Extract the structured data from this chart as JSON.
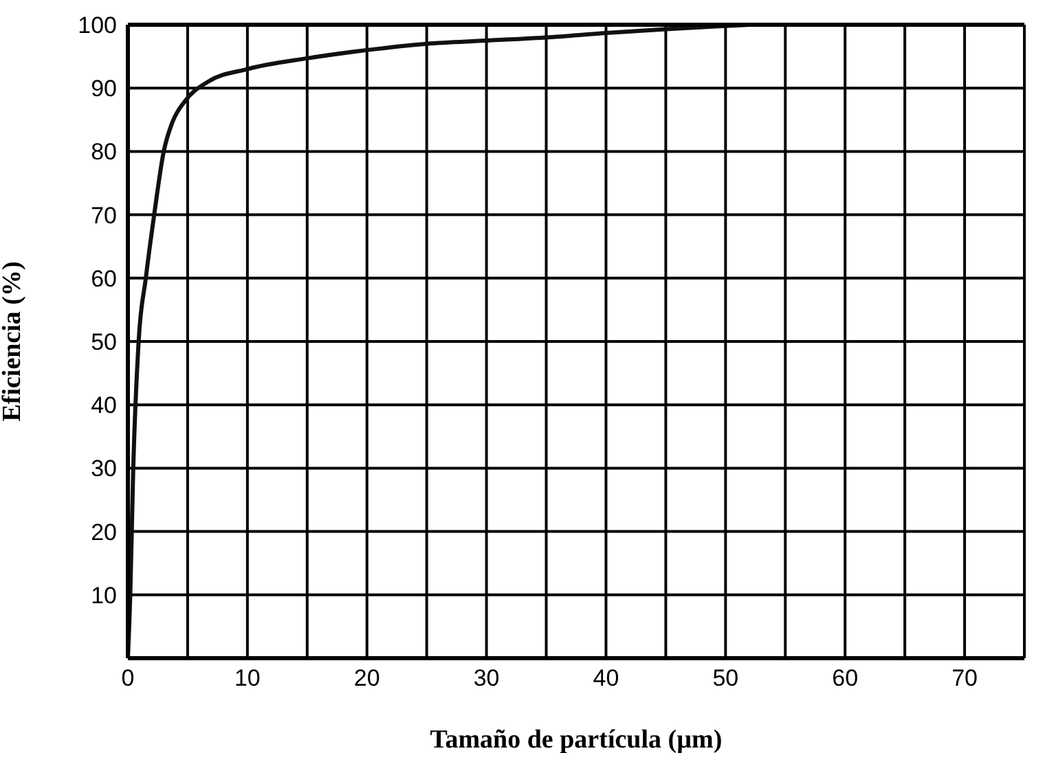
{
  "chart_data": {
    "type": "line",
    "xlabel": "Tamaño de partícula (µm)",
    "ylabel": "Eficiencia (%)",
    "x": [
      0,
      0.2,
      0.45,
      0.9,
      1.5,
      2.2,
      3,
      3.7,
      4.8,
      6.7,
      10,
      15,
      20,
      25,
      30,
      35,
      40,
      45,
      50,
      52
    ],
    "series": [
      {
        "color": "#111111",
        "values": [
          0,
          10,
          30,
          50,
          60,
          70,
          80,
          84.5,
          88,
          91,
          93,
          94.7,
          96,
          97,
          97.5,
          98,
          98.7,
          99.3,
          99.8,
          100
        ]
      }
    ],
    "xlim": [
      0,
      75
    ],
    "ylim": [
      0,
      100
    ],
    "xticks": [
      0,
      {
        "value": 5,
        "label": null
      },
      10,
      {
        "value": 15,
        "label": null
      },
      20,
      {
        "value": 25,
        "label": null
      },
      30,
      {
        "value": 35,
        "label": null
      },
      40,
      {
        "value": 45,
        "label": null
      },
      50,
      {
        "value": 55,
        "label": null
      },
      60,
      {
        "value": 65,
        "label": null
      },
      70,
      {
        "value": 75,
        "label": null
      }
    ],
    "yticks": [
      {
        "value": 0,
        "label": null
      },
      10,
      20,
      30,
      40,
      50,
      60,
      70,
      80,
      90,
      100
    ],
    "grid": true,
    "marker": "none",
    "line_style": "solid",
    "legend": false
  }
}
